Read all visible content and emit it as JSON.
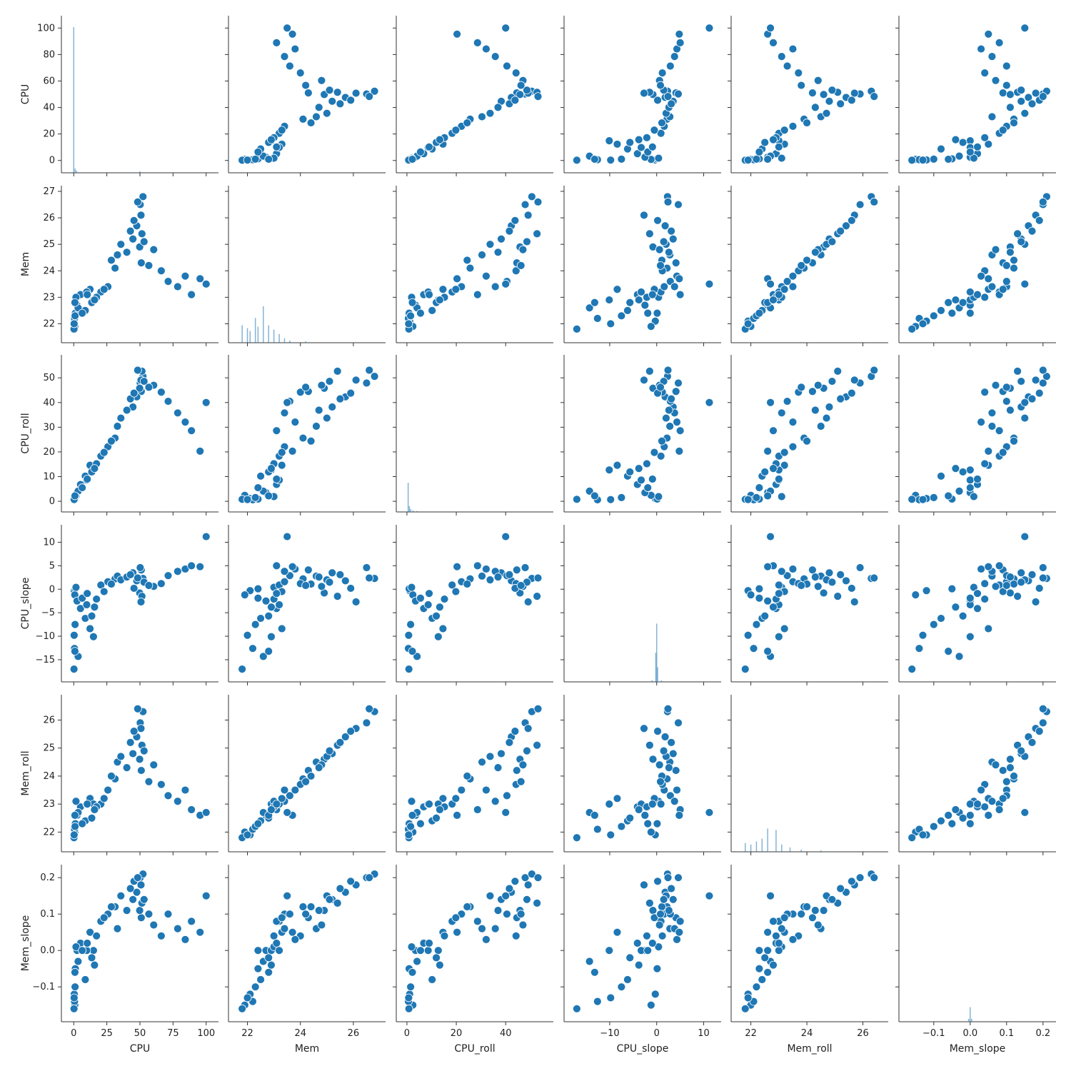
{
  "chart_data": {
    "type": "scatter",
    "layout": "pairplot",
    "marker_color": "#1f77b4",
    "marker_edge_color": "#ffffff",
    "variables": [
      {
        "name": "CPU",
        "range": [
          -5,
          105
        ],
        "ticks": [
          0,
          25,
          50,
          75,
          100
        ],
        "tick_labels": [
          "0",
          "25",
          "50",
          "75",
          "100"
        ]
      },
      {
        "name": "Mem",
        "range": [
          21.5,
          27.0
        ],
        "ticks": [
          22,
          24,
          26
        ],
        "tick_labels": [
          "22",
          "24",
          "26"
        ]
      },
      {
        "name": "CPU_roll",
        "range": [
          -2,
          57
        ],
        "ticks": [
          0,
          20,
          40
        ],
        "tick_labels": [
          "0",
          "20",
          "40"
        ]
      },
      {
        "name": "CPU_slope",
        "range": [
          -18.5,
          12.5
        ],
        "ticks": [
          -10,
          0,
          10
        ],
        "tick_labels": [
          "−10",
          "0",
          "10"
        ]
      },
      {
        "name": "Mem_roll",
        "range": [
          21.5,
          26.7
        ],
        "ticks": [
          22,
          24,
          26
        ],
        "tick_labels": [
          "22",
          "24",
          "26"
        ]
      },
      {
        "name": "Mem_slope",
        "range": [
          -0.18,
          0.22
        ],
        "ticks": [
          -0.1,
          0.0,
          0.1,
          0.2
        ],
        "tick_labels": [
          "−0.1",
          "0.0",
          "0.1",
          "0.2"
        ]
      }
    ],
    "left_tick_labels": [
      {
        "ticks": [
          0,
          20,
          40,
          60,
          80,
          100
        ],
        "labels": [
          "0",
          "20",
          "40",
          "60",
          "80",
          "100"
        ]
      },
      {
        "ticks": [
          22,
          23,
          24,
          25,
          26,
          27
        ],
        "labels": [
          "22",
          "23",
          "24",
          "25",
          "26",
          "27"
        ]
      },
      {
        "ticks": [
          0,
          10,
          20,
          30,
          40,
          50
        ],
        "labels": [
          "0",
          "10",
          "20",
          "30",
          "40",
          "50"
        ]
      },
      {
        "ticks": [
          -15,
          -10,
          -5,
          0,
          5,
          10
        ],
        "labels": [
          "−15",
          "−10",
          "−5",
          "0",
          "5",
          "10"
        ]
      },
      {
        "ticks": [
          22,
          23,
          24,
          25,
          26
        ],
        "labels": [
          "22",
          "23",
          "24",
          "25",
          "26"
        ]
      },
      {
        "ticks": [
          -0.1,
          0.0,
          0.1,
          0.2
        ],
        "labels": [
          "−0.1",
          "0.0",
          "0.1",
          "0.2"
        ]
      }
    ],
    "diagonal_histograms": [
      {
        "variable": "CPU",
        "bins": [
          [
            0,
            1
          ],
          [
            1,
            0.03
          ],
          [
            2,
            0.015
          ],
          [
            50,
            0.01
          ]
        ]
      },
      {
        "variable": "Mem",
        "bins": [
          [
            21.8,
            0.12
          ],
          [
            22.0,
            0.1
          ],
          [
            22.1,
            0.08
          ],
          [
            22.3,
            0.17
          ],
          [
            22.4,
            0.11
          ],
          [
            22.6,
            0.25
          ],
          [
            22.8,
            0.12
          ],
          [
            23.0,
            0.09
          ],
          [
            23.2,
            0.06
          ],
          [
            23.4,
            0.03
          ],
          [
            23.6,
            0.015
          ],
          [
            24.2,
            0.01
          ]
        ]
      },
      {
        "variable": "CPU_roll",
        "bins": [
          [
            0.5,
            0.2
          ],
          [
            1.0,
            0.04
          ],
          [
            1.5,
            0.02
          ],
          [
            2.5,
            0.01
          ],
          [
            4,
            0.006
          ]
        ]
      },
      {
        "variable": "CPU_slope",
        "bins": [
          [
            -0.2,
            0.2
          ],
          [
            0.0,
            0.4
          ],
          [
            0.2,
            0.1
          ],
          [
            -1,
            0.01
          ],
          [
            1,
            0.01
          ]
        ]
      },
      {
        "variable": "Mem_roll",
        "bins": [
          [
            21.8,
            0.06
          ],
          [
            22.0,
            0.05
          ],
          [
            22.2,
            0.07
          ],
          [
            22.4,
            0.09
          ],
          [
            22.6,
            0.16
          ],
          [
            22.9,
            0.15
          ],
          [
            23.1,
            0.05
          ],
          [
            23.4,
            0.03
          ],
          [
            23.8,
            0.015
          ],
          [
            24.5,
            0.01
          ]
        ]
      },
      {
        "variable": "Mem_slope",
        "bins": [
          [
            -0.004,
            0.02
          ],
          [
            0.0,
            0.1
          ],
          [
            0.004,
            0.02
          ]
        ]
      }
    ],
    "points": {
      "CPU": [
        0.4,
        1.2,
        0.8,
        2.5,
        5.1,
        8.7,
        12.3,
        14.9,
        0.6,
        3.3,
        0.2,
        1.7,
        20.5,
        25.8,
        31.2,
        33.0,
        44.7,
        51.0,
        50.2,
        52.3,
        47.6,
        49.8,
        51.5,
        50.8,
        60.4,
        66.1,
        71.3,
        78.5,
        84.2,
        88.9,
        95.4,
        100.0,
        9.8,
        13.6,
        17.2,
        22.9,
        28.4,
        35.6,
        40.1,
        42.8,
        45.5,
        1.0,
        0.3,
        0.9,
        6.4,
        10.2,
        15.7,
        48.3,
        53.1,
        56.7
      ],
      "Mem": [
        22.1,
        22.4,
        21.9,
        22.7,
        23.1,
        22.5,
        23.3,
        22.9,
        22.2,
        22.6,
        21.8,
        23.0,
        23.2,
        23.4,
        24.1,
        24.6,
        25.2,
        24.3,
        26.5,
        26.8,
        25.7,
        24.9,
        25.4,
        26.1,
        24.8,
        24.0,
        23.6,
        23.4,
        23.8,
        23.1,
        23.7,
        23.5,
        23.2,
        22.8,
        23.0,
        23.3,
        24.4,
        25.0,
        24.7,
        25.5,
        25.9,
        22.3,
        22.0,
        22.8,
        22.4,
        23.1,
        22.9,
        26.6,
        25.1,
        24.2
      ],
      "CPU_roll": [
        1.1,
        0.9,
        2.4,
        3.5,
        6.8,
        10.2,
        14.6,
        12.7,
        0.6,
        4.1,
        0.8,
        1.9,
        18.3,
        22.1,
        25.6,
        30.4,
        38.2,
        44.5,
        47.9,
        50.6,
        42.3,
        45.8,
        52.7,
        49.1,
        47.0,
        44.2,
        40.5,
        35.8,
        32.1,
        28.6,
        20.3,
        40.0,
        8.6,
        11.9,
        15.2,
        19.8,
        24.4,
        33.7,
        36.9,
        41.5,
        43.8,
        1.5,
        0.7,
        2.2,
        5.5,
        9.0,
        13.3,
        53.1,
        48.6,
        46.2
      ],
      "CPU_slope": [
        -0.3,
        0.1,
        -1.2,
        -2.5,
        -4.1,
        -6.2,
        -8.4,
        -10.1,
        -12.6,
        -14.3,
        -17.0,
        0.4,
        0.9,
        1.6,
        2.2,
        2.8,
        3.5,
        4.1,
        4.6,
        2.3,
        1.8,
        -0.8,
        -1.5,
        -2.7,
        0.6,
        1.2,
        2.9,
        3.8,
        4.3,
        5.0,
        4.8,
        11.2,
        -3.3,
        -5.7,
        -2.1,
        -0.5,
        1.1,
        2.0,
        2.6,
        3.1,
        0.2,
        -7.5,
        -9.8,
        -13.2,
        -1.9,
        -0.9,
        -3.8,
        2.4,
        1.5,
        0.8
      ],
      "Mem_roll": [
        21.9,
        22.3,
        22.0,
        22.6,
        22.9,
        22.4,
        23.2,
        23.0,
        22.1,
        22.7,
        21.8,
        23.1,
        23.0,
        23.5,
        23.9,
        24.5,
        24.8,
        24.2,
        25.9,
        26.3,
        25.4,
        24.6,
        25.1,
        25.7,
        24.4,
        23.7,
        23.3,
        23.1,
        23.5,
        22.8,
        22.6,
        22.7,
        23.0,
        22.5,
        22.9,
        23.2,
        24.0,
        24.7,
        24.3,
        25.2,
        25.6,
        22.2,
        21.9,
        22.6,
        22.3,
        23.0,
        22.8,
        26.4,
        24.9,
        23.8
      ],
      "Mem_slope": [
        -0.12,
        -0.05,
        -0.15,
        0.0,
        0.02,
        -0.08,
        0.05,
        0.0,
        -0.14,
        -0.03,
        -0.16,
        0.01,
        0.08,
        0.1,
        0.12,
        0.06,
        0.14,
        0.09,
        0.2,
        0.21,
        0.16,
        0.11,
        0.13,
        0.18,
        0.07,
        0.04,
        0.1,
        0.06,
        0.03,
        0.08,
        0.05,
        0.15,
        0.0,
        -0.02,
        0.04,
        0.09,
        0.12,
        0.15,
        0.11,
        0.17,
        0.19,
        -0.1,
        -0.13,
        -0.06,
        0.0,
        0.02,
        -0.04,
        0.2,
        0.14,
        0.1
      ]
    }
  }
}
